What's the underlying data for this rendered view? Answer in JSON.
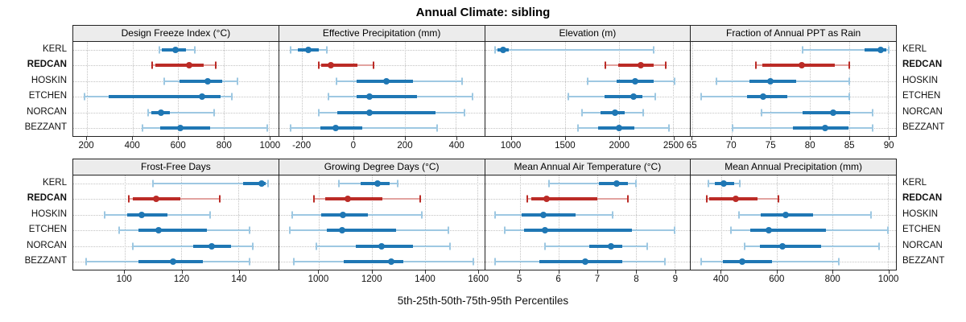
{
  "chart_data": {
    "type": "scatter",
    "variant": "percentile-dotplot",
    "title": "Annual Climate: sibling",
    "caption": "5th-25th-50th-75th-95th Percentiles",
    "percentile_labels": [
      "5th",
      "25th",
      "50th",
      "75th",
      "95th"
    ],
    "stations": [
      "KERL",
      "REDCAN",
      "HOSKIN",
      "ETCHEN",
      "NORCAN",
      "BEZZANT"
    ],
    "highlight_station": "REDCAN",
    "grid": "dotted",
    "legend_position": "none",
    "colors": {
      "blue_main": "#1f77b4",
      "blue_light": "#9ec8e2",
      "red_main": "#bb2b26",
      "red_light": "#e2a3a0",
      "panel_header_bg": "#ececec",
      "panel_border": "#222222",
      "gridline": "#c3c3c3"
    },
    "panels": [
      {
        "title": "Design Freeze Index (°C)",
        "row": 1,
        "ticks": [
          200,
          400,
          600,
          800,
          1000
        ],
        "xlim": [
          140,
          1040
        ],
        "series": [
          [
            518,
            528,
            588,
            634,
            674
          ],
          [
            487,
            501,
            647,
            712,
            766
          ],
          [
            540,
            606,
            729,
            795,
            861
          ],
          [
            190,
            296,
            706,
            788,
            836
          ],
          [
            467,
            482,
            526,
            564,
            757
          ],
          [
            444,
            520,
            609,
            739,
            990
          ]
        ]
      },
      {
        "title": "Effective Precipitation (mm)",
        "row": 1,
        "ticks": [
          -200,
          0,
          200,
          400
        ],
        "xlim": [
          -290,
          510
        ],
        "series": [
          [
            -245,
            -218,
            -177,
            -136,
            -104
          ],
          [
            -136,
            -127,
            -89,
            15,
            77
          ],
          [
            -67,
            12,
            127,
            233,
            425
          ],
          [
            -99,
            11,
            62,
            248,
            464
          ],
          [
            -136,
            -62,
            61,
            320,
            433
          ],
          [
            -244,
            -130,
            -70,
            33,
            325
          ]
        ]
      },
      {
        "title": "Elevation (m)",
        "row": 1,
        "ticks": [
          1000,
          1500,
          2000,
          2500
        ],
        "xlim": [
          755,
          2660
        ],
        "series": [
          [
            845,
            872,
            921,
            979,
            2325
          ],
          [
            1876,
            1990,
            2200,
            2324,
            2436
          ],
          [
            1711,
            1979,
            2151,
            2319,
            2519
          ],
          [
            1528,
            1866,
            2134,
            2219,
            2336
          ],
          [
            1656,
            1829,
            1961,
            2051,
            2221
          ],
          [
            1619,
            1804,
            2002,
            2139,
            2465
          ]
        ]
      },
      {
        "title": "Fraction of Annual PPT as Rain",
        "row": 1,
        "ticks": [
          65,
          70,
          75,
          80,
          85,
          90
        ],
        "xlim": [
          64.8,
          91
        ],
        "series": [
          [
            79.1,
            87.0,
            89.0,
            89.8,
            90.1
          ],
          [
            73.1,
            73.9,
            79.0,
            83.2,
            85.0
          ],
          [
            68.1,
            72.3,
            75.0,
            78.2,
            85.0
          ],
          [
            66.1,
            72.0,
            74.0,
            77.1,
            85.0
          ],
          [
            73.8,
            79.1,
            83.0,
            85.1,
            88.0
          ],
          [
            70.1,
            77.8,
            82.0,
            84.9,
            88.0
          ]
        ]
      },
      {
        "title": "Frost-Free Days",
        "row": 2,
        "ticks": [
          100,
          120,
          140
        ],
        "xlim": [
          82,
          154
        ],
        "series": [
          [
            110,
            141.5,
            148,
            149.5,
            150.5
          ],
          [
            101.5,
            103,
            111,
            119.5,
            133.5
          ],
          [
            93,
            101,
            106,
            115,
            130
          ],
          [
            98,
            105,
            112,
            129,
            144
          ],
          [
            103,
            124,
            130.5,
            137.5,
            145
          ],
          [
            86.5,
            105,
            117,
            127.5,
            144
          ]
        ]
      },
      {
        "title": "Growing Degree Days (°C)",
        "row": 2,
        "ticks": [
          1000,
          1200,
          1400,
          1600
        ],
        "xlim": [
          850,
          1625
        ],
        "series": [
          [
            1076,
            1157,
            1222,
            1267,
            1297
          ],
          [
            982,
            1025,
            1108,
            1240,
            1382
          ],
          [
            898,
            1008,
            1090,
            1186,
            1390
          ],
          [
            891,
            1029,
            1088,
            1293,
            1489
          ],
          [
            991,
            1141,
            1238,
            1355,
            1497
          ],
          [
            906,
            1095,
            1275,
            1320,
            1583
          ]
        ]
      },
      {
        "title": "Mean Annual Air Temperature (°C)",
        "row": 2,
        "ticks": [
          5,
          6,
          7,
          8,
          9
        ],
        "xlim": [
          4.1,
          9.4
        ],
        "series": [
          [
            5.75,
            7.05,
            7.5,
            7.8,
            8.0
          ],
          [
            5.2,
            5.3,
            5.7,
            7.0,
            7.8
          ],
          [
            4.35,
            5.05,
            5.6,
            6.45,
            7.4
          ],
          [
            4.6,
            5.1,
            5.65,
            7.9,
            9.0
          ],
          [
            5.65,
            6.8,
            7.35,
            7.65,
            8.3
          ],
          [
            4.35,
            5.5,
            6.7,
            7.65,
            8.75
          ]
        ]
      },
      {
        "title": "Mean Annual Precipitation (mm)",
        "row": 2,
        "ticks": [
          400,
          600,
          800,
          1000
        ],
        "xlim": [
          290,
          1030
        ],
        "series": [
          [
            352,
            377,
            409,
            447,
            467
          ],
          [
            347,
            356,
            452,
            530,
            605
          ],
          [
            465,
            542,
            632,
            732,
            939
          ],
          [
            435,
            505,
            570,
            777,
            1000
          ],
          [
            485,
            540,
            620,
            760,
            970
          ],
          [
            327,
            405,
            475,
            582,
            825
          ]
        ]
      }
    ]
  }
}
